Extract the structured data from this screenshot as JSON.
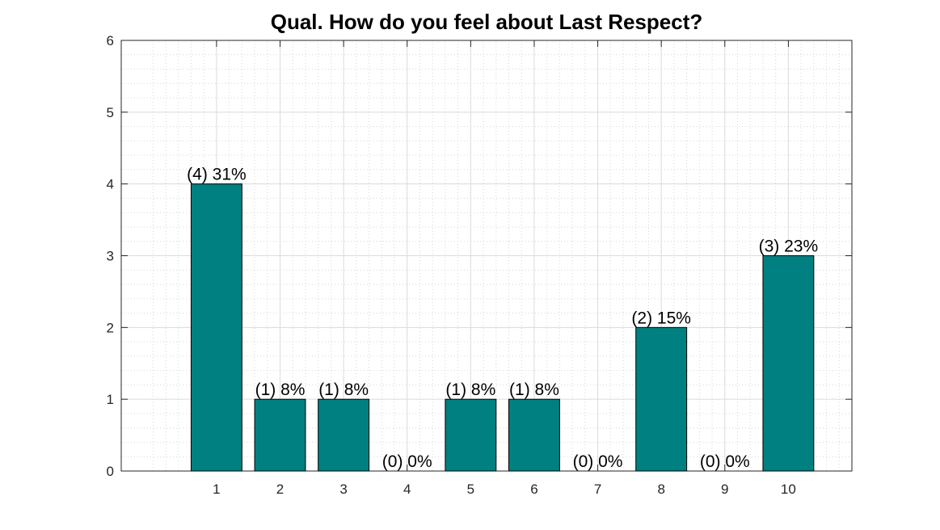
{
  "chart_data": {
    "type": "bar",
    "title": "Qual. How do you feel about Last Respect?",
    "xlabel": "",
    "ylabel": "",
    "categories": [
      "1",
      "2",
      "3",
      "4",
      "5",
      "6",
      "7",
      "8",
      "9",
      "10"
    ],
    "values": [
      4,
      1,
      1,
      0,
      1,
      1,
      0,
      2,
      0,
      3
    ],
    "data_labels": [
      "(4) 31%",
      "(1) 8%",
      "(1) 8%",
      "(0) 0%",
      "(1) 8%",
      "(1) 8%",
      "(0) 0%",
      "(2) 15%",
      "(0) 0%",
      "(3) 23%"
    ],
    "ylim": [
      0,
      6
    ],
    "xlim": [
      -0.5,
      11
    ],
    "yticks": [
      "0",
      "1",
      "2",
      "3",
      "4",
      "5",
      "6"
    ],
    "grid": true,
    "minor_grid": true,
    "bar_color": "#008080",
    "bar_edge_color": "#000000"
  }
}
